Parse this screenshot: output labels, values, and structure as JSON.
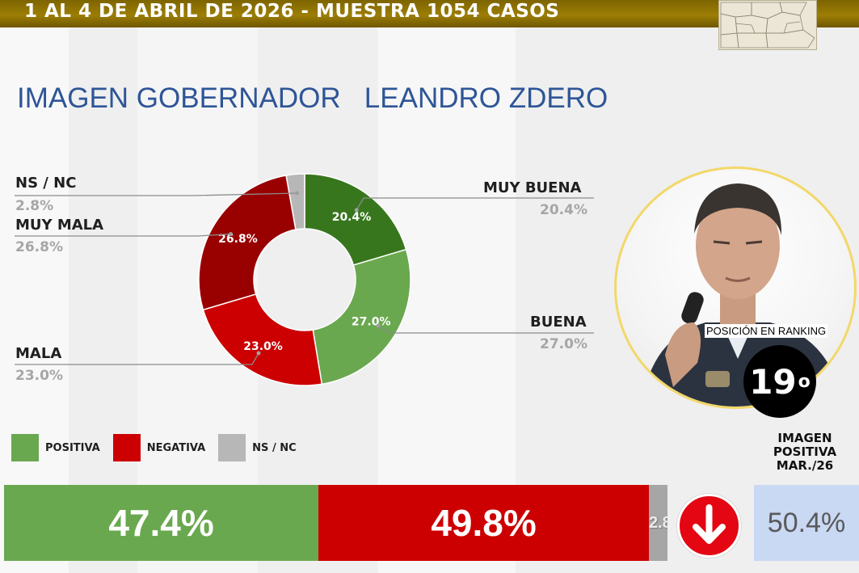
{
  "header": {
    "title": "1 AL 4 DE ABRIL DE 2026 - MUESTRA 1054 CASOS"
  },
  "title": {
    "part1": "IMAGEN GOBERNADOR",
    "part2": "LEANDRO ZDERO"
  },
  "colors": {
    "muy_buena": "#38761d",
    "buena": "#6aa84f",
    "mala": "#cc0000",
    "muy_mala": "#990000",
    "ns_nc": "#b7b7b7",
    "positiva": "#6aa84f",
    "negativa": "#cc0000",
    "header_gold": "#8a6d00",
    "title_blue": "#2e5597"
  },
  "chart_data": [
    {
      "type": "pie",
      "variant": "donut",
      "categories": [
        "MUY BUENA",
        "BUENA",
        "MALA",
        "MUY MALA",
        "NS / NC"
      ],
      "values": [
        20.4,
        27.0,
        23.0,
        26.8,
        2.8
      ],
      "slice_labels": [
        "20.4%",
        "27.0%",
        "23.0%",
        "26.8%",
        ""
      ],
      "callout_values": [
        "20.4%",
        "27.0%",
        "23.0%",
        "26.8%",
        "2.8%"
      ],
      "colors": [
        "#38761d",
        "#6aa84f",
        "#cc0000",
        "#990000",
        "#b7b7b7"
      ]
    },
    {
      "type": "bar",
      "variant": "stacked-horizontal-100",
      "categories": [
        "POSITIVA",
        "NEGATIVA",
        "NS / NC"
      ],
      "values": [
        47.4,
        49.8,
        2.8
      ],
      "value_labels": [
        "47.4%",
        "49.8%",
        "2.8%"
      ],
      "colors": [
        "#6aa84f",
        "#cc0000",
        "#a6a6a6"
      ]
    }
  ],
  "legend": [
    {
      "label": "POSITIVA",
      "color": "#6aa84f"
    },
    {
      "label": "NEGATIVA",
      "color": "#cc0000"
    },
    {
      "label": "NS / NC",
      "color": "#b7b7b7"
    }
  ],
  "ranking": {
    "label": "POSICIÓN EN RANKING",
    "position": "19",
    "ordinal": "o"
  },
  "previous": {
    "label": "IMAGEN POSITIVA MAR./26",
    "value": "50.4%",
    "trend": "down"
  }
}
